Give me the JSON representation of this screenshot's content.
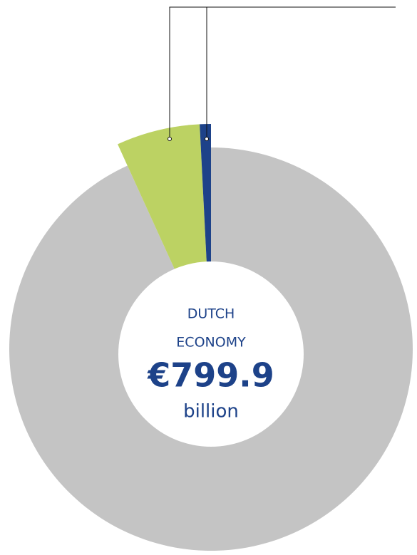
{
  "chart_data": {
    "type": "pie",
    "donut": true,
    "values": [
      93.2,
      6.0,
      0.8
    ],
    "colors": [
      "#c4c4c4",
      "#bcd263",
      "#1d4289"
    ],
    "explode": [
      false,
      true,
      true
    ],
    "center_label": [
      "DUTCH",
      "ECONOMY"
    ],
    "center_value": "€799.9",
    "center_unit": "billion"
  }
}
